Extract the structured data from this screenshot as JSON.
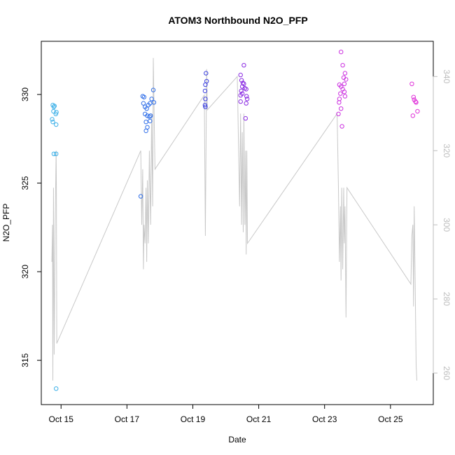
{
  "chart_data": {
    "type": "scatter",
    "title": "ATOM3 Northbound N2O_PFP",
    "xlabel": "Date",
    "ylabel": "N2O_PFP",
    "x_ticks": [
      "Oct 15",
      "Oct 17",
      "Oct 19",
      "Oct 21",
      "Oct 23",
      "Oct 25"
    ],
    "x_tick_values": [
      15,
      17,
      19,
      21,
      23,
      25
    ],
    "xlim": [
      14.4,
      26.3
    ],
    "ylim": [
      312.5,
      333.0
    ],
    "y_ticks": [
      315,
      320,
      325,
      330
    ],
    "y2_ticks": [
      260,
      280,
      300,
      320,
      340
    ],
    "y2lim": [
      251.5,
      349.5
    ],
    "grid": false,
    "colors": {
      "line": "#c8c8c8",
      "axis": "#000000",
      "axis_right": "#bdbdbd"
    },
    "series": [
      {
        "kind": "points",
        "points": [
          {
            "x": 14.75,
            "y": 329.4,
            "color": "#3fb1e8"
          },
          {
            "x": 14.78,
            "y": 329.3,
            "color": "#3fb1e8"
          },
          {
            "x": 14.8,
            "y": 329.35,
            "color": "#3fb1e8"
          },
          {
            "x": 14.77,
            "y": 329.05,
            "color": "#3fb1e8"
          },
          {
            "x": 14.84,
            "y": 328.9,
            "color": "#3fb1e8"
          },
          {
            "x": 14.86,
            "y": 329.0,
            "color": "#3fb1e8"
          },
          {
            "x": 14.73,
            "y": 328.6,
            "color": "#3fb1e8"
          },
          {
            "x": 14.75,
            "y": 328.45,
            "color": "#3fb1e8"
          },
          {
            "x": 14.85,
            "y": 328.3,
            "color": "#3fb1e8"
          },
          {
            "x": 14.78,
            "y": 326.65,
            "color": "#3fb1e8"
          },
          {
            "x": 14.85,
            "y": 326.65,
            "color": "#3fb1e8"
          },
          {
            "x": 14.85,
            "y": 313.4,
            "color": "#3fb1e8"
          },
          {
            "x": 17.42,
            "y": 324.25,
            "color": "#2f6ee8"
          },
          {
            "x": 17.48,
            "y": 329.9,
            "color": "#2f6ee8"
          },
          {
            "x": 17.52,
            "y": 329.85,
            "color": "#2f6ee8"
          },
          {
            "x": 17.5,
            "y": 329.5,
            "color": "#2f6ee8"
          },
          {
            "x": 17.55,
            "y": 329.3,
            "color": "#2f6ee8"
          },
          {
            "x": 17.6,
            "y": 329.2,
            "color": "#2f6ee8"
          },
          {
            "x": 17.65,
            "y": 329.4,
            "color": "#2f6ee8"
          },
          {
            "x": 17.7,
            "y": 329.5,
            "color": "#2f6ee8"
          },
          {
            "x": 17.75,
            "y": 329.75,
            "color": "#2f6ee8"
          },
          {
            "x": 17.8,
            "y": 330.25,
            "color": "#2f6ee8"
          },
          {
            "x": 17.82,
            "y": 329.55,
            "color": "#2f6ee8"
          },
          {
            "x": 17.55,
            "y": 328.9,
            "color": "#2f6ee8"
          },
          {
            "x": 17.62,
            "y": 328.8,
            "color": "#2f6ee8"
          },
          {
            "x": 17.68,
            "y": 328.75,
            "color": "#2f6ee8"
          },
          {
            "x": 17.72,
            "y": 328.8,
            "color": "#2f6ee8"
          },
          {
            "x": 17.58,
            "y": 328.45,
            "color": "#2f6ee8"
          },
          {
            "x": 17.7,
            "y": 328.5,
            "color": "#2f6ee8"
          },
          {
            "x": 17.62,
            "y": 328.15,
            "color": "#2f6ee8"
          },
          {
            "x": 17.58,
            "y": 327.95,
            "color": "#2f6ee8"
          },
          {
            "x": 19.4,
            "y": 331.2,
            "color": "#3a3fe0"
          },
          {
            "x": 19.42,
            "y": 330.75,
            "color": "#3a3fe0"
          },
          {
            "x": 19.38,
            "y": 330.55,
            "color": "#3a3fe0"
          },
          {
            "x": 19.37,
            "y": 330.2,
            "color": "#3a3fe0"
          },
          {
            "x": 19.38,
            "y": 329.75,
            "color": "#3a3fe0"
          },
          {
            "x": 19.37,
            "y": 329.4,
            "color": "#3a3fe0"
          },
          {
            "x": 19.38,
            "y": 329.3,
            "color": "#3a3fe0"
          },
          {
            "x": 20.45,
            "y": 331.1,
            "color": "#8a2be2"
          },
          {
            "x": 20.48,
            "y": 330.8,
            "color": "#8a2be2"
          },
          {
            "x": 20.52,
            "y": 330.65,
            "color": "#8a2be2"
          },
          {
            "x": 20.55,
            "y": 330.6,
            "color": "#8a2be2"
          },
          {
            "x": 20.5,
            "y": 330.45,
            "color": "#8a2be2"
          },
          {
            "x": 20.58,
            "y": 330.35,
            "color": "#8a2be2"
          },
          {
            "x": 20.62,
            "y": 330.3,
            "color": "#8a2be2"
          },
          {
            "x": 20.47,
            "y": 330.2,
            "color": "#8a2be2"
          },
          {
            "x": 20.5,
            "y": 330.05,
            "color": "#8a2be2"
          },
          {
            "x": 20.45,
            "y": 329.95,
            "color": "#8a2be2"
          },
          {
            "x": 20.63,
            "y": 329.9,
            "color": "#8a2be2"
          },
          {
            "x": 20.65,
            "y": 329.75,
            "color": "#8a2be2"
          },
          {
            "x": 20.45,
            "y": 329.6,
            "color": "#8a2be2"
          },
          {
            "x": 20.62,
            "y": 329.5,
            "color": "#8a2be2"
          },
          {
            "x": 20.55,
            "y": 331.65,
            "color": "#8a2be2"
          },
          {
            "x": 20.6,
            "y": 328.65,
            "color": "#8a2be2"
          },
          {
            "x": 23.5,
            "y": 332.4,
            "color": "#cc33e0"
          },
          {
            "x": 23.55,
            "y": 331.65,
            "color": "#cc33e0"
          },
          {
            "x": 23.62,
            "y": 331.2,
            "color": "#cc33e0"
          },
          {
            "x": 23.58,
            "y": 330.95,
            "color": "#cc33e0"
          },
          {
            "x": 23.65,
            "y": 330.85,
            "color": "#cc33e0"
          },
          {
            "x": 23.6,
            "y": 330.6,
            "color": "#cc33e0"
          },
          {
            "x": 23.45,
            "y": 330.55,
            "color": "#cc33e0"
          },
          {
            "x": 23.5,
            "y": 330.45,
            "color": "#cc33e0"
          },
          {
            "x": 23.55,
            "y": 330.3,
            "color": "#cc33e0"
          },
          {
            "x": 23.6,
            "y": 330.15,
            "color": "#cc33e0"
          },
          {
            "x": 23.48,
            "y": 330.05,
            "color": "#cc33e0"
          },
          {
            "x": 23.62,
            "y": 329.9,
            "color": "#cc33e0"
          },
          {
            "x": 23.45,
            "y": 329.75,
            "color": "#cc33e0"
          },
          {
            "x": 23.44,
            "y": 329.55,
            "color": "#cc33e0"
          },
          {
            "x": 23.5,
            "y": 329.2,
            "color": "#cc33e0"
          },
          {
            "x": 23.42,
            "y": 328.9,
            "color": "#cc33e0"
          },
          {
            "x": 23.53,
            "y": 328.2,
            "color": "#cc33e0"
          },
          {
            "x": 25.65,
            "y": 330.6,
            "color": "#e033d9"
          },
          {
            "x": 25.7,
            "y": 329.85,
            "color": "#e033d9"
          },
          {
            "x": 25.72,
            "y": 329.7,
            "color": "#e033d9"
          },
          {
            "x": 25.76,
            "y": 329.6,
            "color": "#e033d9"
          },
          {
            "x": 25.78,
            "y": 329.55,
            "color": "#e033d9"
          },
          {
            "x": 25.82,
            "y": 329.05,
            "color": "#e033d9"
          },
          {
            "x": 25.68,
            "y": 328.8,
            "color": "#e033d9"
          }
        ]
      },
      {
        "kind": "line",
        "axis": "right",
        "points": [
          [
            14.72,
            290
          ],
          [
            14.74,
            300
          ],
          [
            14.75,
            258
          ],
          [
            14.77,
            310
          ],
          [
            14.79,
            265
          ],
          [
            14.82,
            300
          ],
          [
            14.85,
            320
          ],
          [
            14.86,
            310
          ],
          [
            14.87,
            268
          ],
          [
            17.42,
            320
          ],
          [
            17.45,
            300
          ],
          [
            17.48,
            315
          ],
          [
            17.5,
            288
          ],
          [
            17.52,
            300
          ],
          [
            17.55,
            295
          ],
          [
            17.58,
            310
          ],
          [
            17.6,
            290
          ],
          [
            17.62,
            312
          ],
          [
            17.65,
            295
          ],
          [
            17.68,
            320
          ],
          [
            17.72,
            300
          ],
          [
            17.75,
            330
          ],
          [
            17.78,
            305
          ],
          [
            17.8,
            345
          ],
          [
            17.85,
            315
          ],
          [
            19.35,
            335
          ],
          [
            19.38,
            297
          ],
          [
            19.4,
            320
          ],
          [
            19.42,
            342
          ],
          [
            19.44,
            331
          ],
          [
            20.35,
            340
          ],
          [
            20.42,
            305
          ],
          [
            20.45,
            330
          ],
          [
            20.48,
            300
          ],
          [
            20.5,
            325
          ],
          [
            20.53,
            298
          ],
          [
            20.55,
            330
          ],
          [
            20.58,
            300
          ],
          [
            20.6,
            320
          ],
          [
            20.62,
            292
          ],
          [
            20.64,
            320
          ],
          [
            20.66,
            295
          ],
          [
            23.38,
            330
          ],
          [
            23.42,
            310
          ],
          [
            23.45,
            290
          ],
          [
            23.48,
            305
          ],
          [
            23.5,
            285
          ],
          [
            23.52,
            310
          ],
          [
            23.55,
            288
          ],
          [
            23.58,
            310
          ],
          [
            23.6,
            295
          ],
          [
            23.62,
            305
          ],
          [
            23.65,
            275
          ],
          [
            23.68,
            310
          ],
          [
            25.62,
            284
          ],
          [
            25.65,
            297
          ],
          [
            25.68,
            300
          ],
          [
            25.7,
            278
          ],
          [
            25.72,
            305
          ],
          [
            25.75,
            285
          ],
          [
            25.78,
            262
          ],
          [
            25.8,
            258
          ]
        ]
      }
    ]
  }
}
